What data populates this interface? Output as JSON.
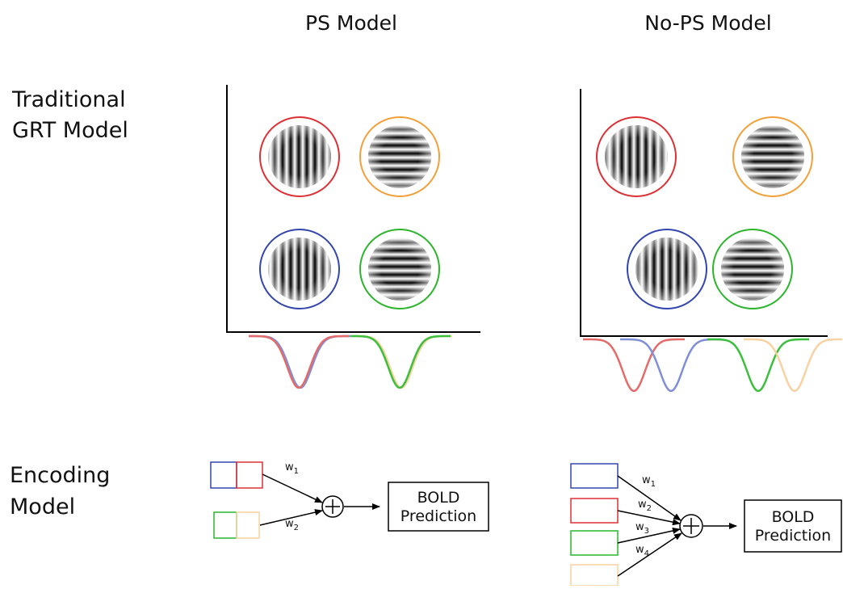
{
  "columns": {
    "ps": "PS Model",
    "no_ps": "No-PS Model"
  },
  "rows": {
    "grt": [
      "Traditional",
      "GRT Model"
    ],
    "encoding": [
      "Encoding",
      "Model"
    ]
  },
  "encoding": {
    "ps": {
      "weights": [
        [
          "w",
          "1"
        ],
        [
          "w",
          "2"
        ]
      ],
      "output": [
        "BOLD",
        "Prediction"
      ]
    },
    "no_ps": {
      "weights": [
        [
          "w",
          "1"
        ],
        [
          "w",
          "2"
        ],
        [
          "w",
          "3"
        ],
        [
          "w",
          "4"
        ]
      ],
      "output": [
        "BOLD",
        "Prediction"
      ]
    }
  }
}
